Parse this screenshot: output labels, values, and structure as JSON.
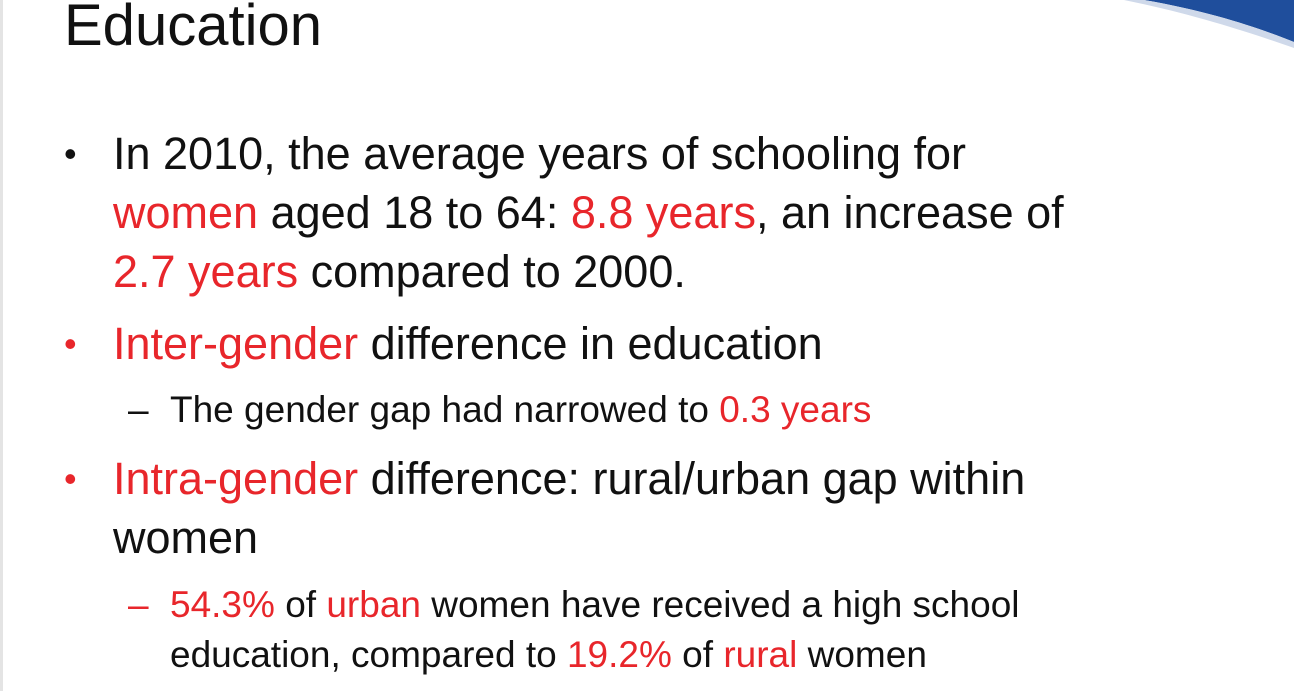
{
  "slide": {
    "title": "Education",
    "colors": {
      "text": "#111111",
      "highlight": "#e8262b",
      "accent_blue": "#1f4e9c"
    },
    "bullet_1": {
      "marker": "•",
      "line1": {
        "a": "In 2010, the average years of schooling for"
      },
      "line2": {
        "a": "women",
        "b": " aged 18 to 64: ",
        "c": "8.8 years",
        "d": ", an increase of"
      },
      "line3": {
        "a": "2.7 years",
        "b": " compared to 2000."
      }
    },
    "bullet_2": {
      "marker": "•",
      "line1": {
        "a": "Inter-gender",
        "b": " difference in education"
      },
      "sub": {
        "marker": "–",
        "line1": {
          "a": "The gender gap had narrowed to ",
          "b": "0.3 years"
        }
      }
    },
    "bullet_3": {
      "marker": "•",
      "line1": {
        "a": "Intra-gender",
        "b": " difference: rural/urban gap within"
      },
      "line2": {
        "a": "women"
      },
      "sub": {
        "marker": "–",
        "line1": {
          "a": "54.3%",
          "b": " of ",
          "c": "urban",
          "d": " women have received a high school"
        },
        "line2": {
          "a": "education, compared to ",
          "b": "19.2%",
          "c": " of ",
          "d": "rural",
          "e": " women"
        }
      }
    }
  }
}
